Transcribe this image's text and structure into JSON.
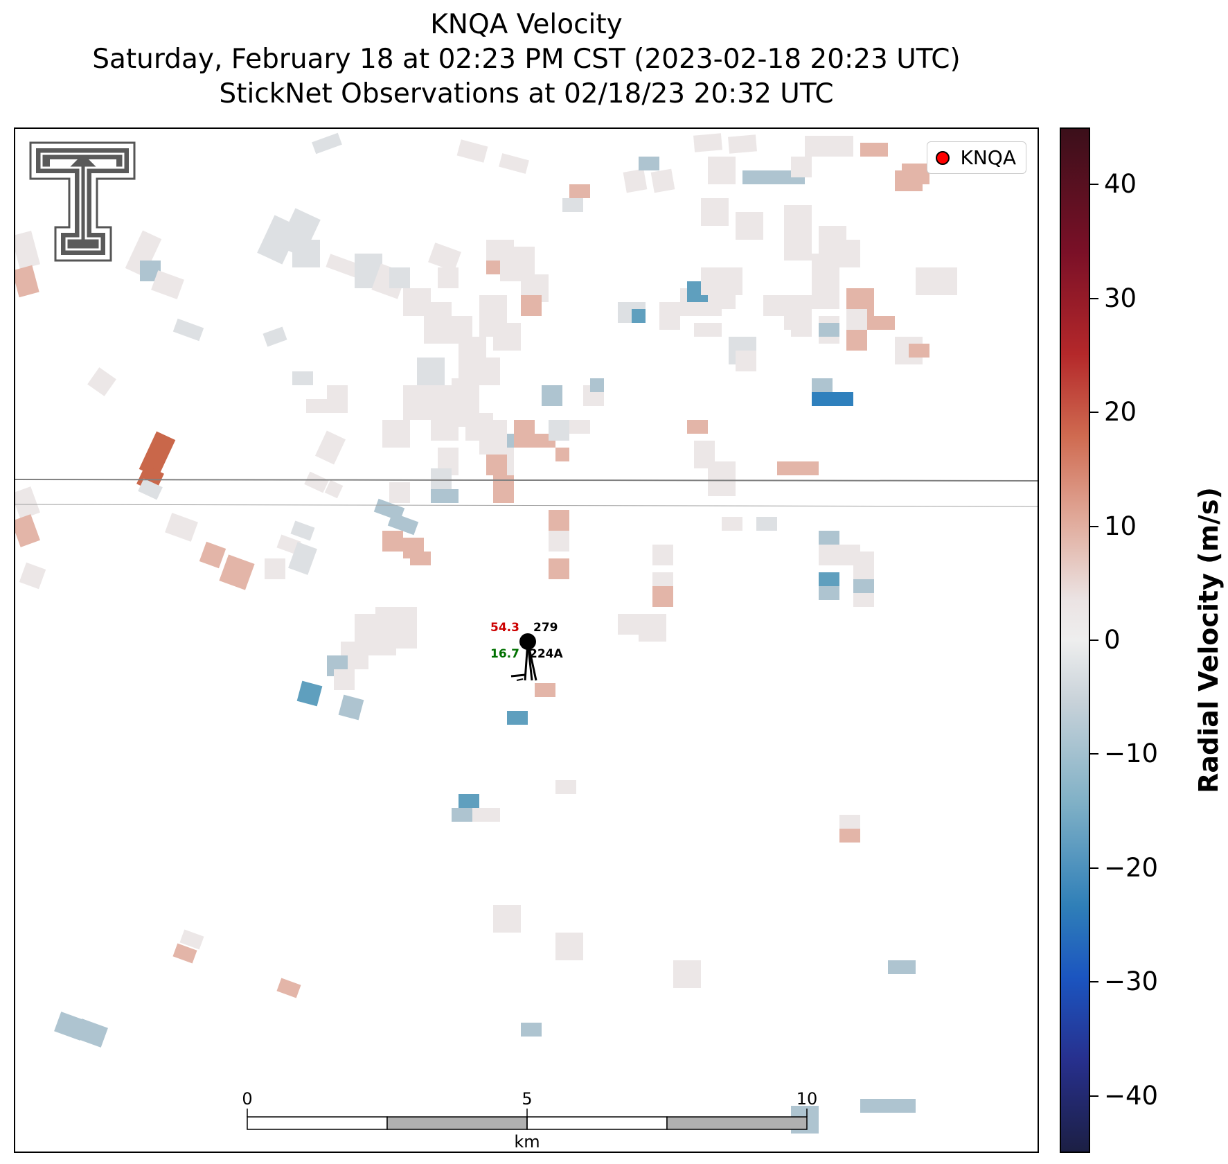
{
  "title": {
    "line1": "KNQA Velocity",
    "line2": "Saturday, February 18 at 02:23 PM CST (2023-02-18 20:23 UTC)",
    "line3": "StickNet Observations at 02/18/23 20:32 UTC"
  },
  "map": {
    "legend_label": "KNQA",
    "legend_marker_color": "#ff0000",
    "logo": "texas-tech-double-t-logo",
    "boundary_lines": "county boundary lines",
    "radar_pixels_description": "scattered radial velocity gates, mostly near 0 m/s with some inbound (blue) and outbound (red) gates"
  },
  "station": {
    "id": "224A",
    "temperature": "54.3",
    "dewpoint": "16.7",
    "pressure": "279",
    "temperature_color": "#cc0000",
    "dewpoint_color": "#007000"
  },
  "scalebar": {
    "labels": [
      "0",
      "5",
      "10"
    ],
    "unit": "km"
  },
  "colorbar": {
    "title": "Radial Velocity (m/s)",
    "min": -45,
    "max": 45,
    "ticks": [
      "40",
      "30",
      "20",
      "10",
      "0",
      "−10",
      "−20",
      "−30",
      "−40"
    ],
    "colormap": [
      "#3b0f1a",
      "#7a1027",
      "#b4282a",
      "#cf6a50",
      "#e0a898",
      "#eeeeee",
      "#c8d2d9",
      "#7fb0c6",
      "#2f7fb8",
      "#1b55c0",
      "#27308e",
      "#1c1f44"
    ]
  }
}
